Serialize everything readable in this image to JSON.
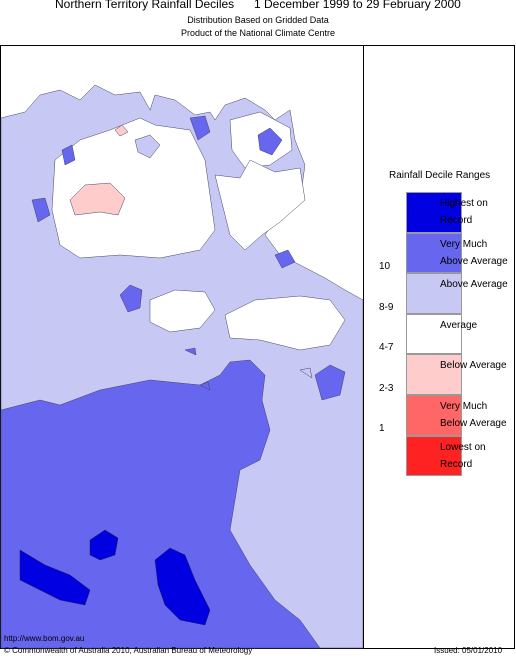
{
  "header": {
    "title": "Northern Territory Rainfall Deciles",
    "period": "1 December 1999 to 29 February 2000",
    "subtitle_1": "Distribution Based on Gridded Data",
    "subtitle_2": "Product of the National Climate Centre"
  },
  "legend": {
    "title": "Rainfall Decile Ranges",
    "items": [
      {
        "label": "Highest on Record",
        "range": null,
        "color": "#0000e0"
      },
      {
        "label": "Very Much Above Average",
        "range": "10",
        "color": "#6666ee"
      },
      {
        "label": "Above Average",
        "range": "8-9",
        "color": "#c8c8f4"
      },
      {
        "label": "Average",
        "range": "4-7",
        "color": "#ffffff"
      },
      {
        "label": "Below Average",
        "range": "2-3",
        "color": "#ffcccc"
      },
      {
        "label": "Very Much Below Average",
        "range": "1",
        "color": "#ff6666"
      },
      {
        "label": "Lowest on Record",
        "range": null,
        "color": "#ff2222"
      }
    ]
  },
  "footer": {
    "url": "http://www.bom.gov.au",
    "copyright": "© Commonwealth of Australia 2010, Australian Bureau of Meteorology",
    "issued": "Issued: 05/01/2010"
  }
}
